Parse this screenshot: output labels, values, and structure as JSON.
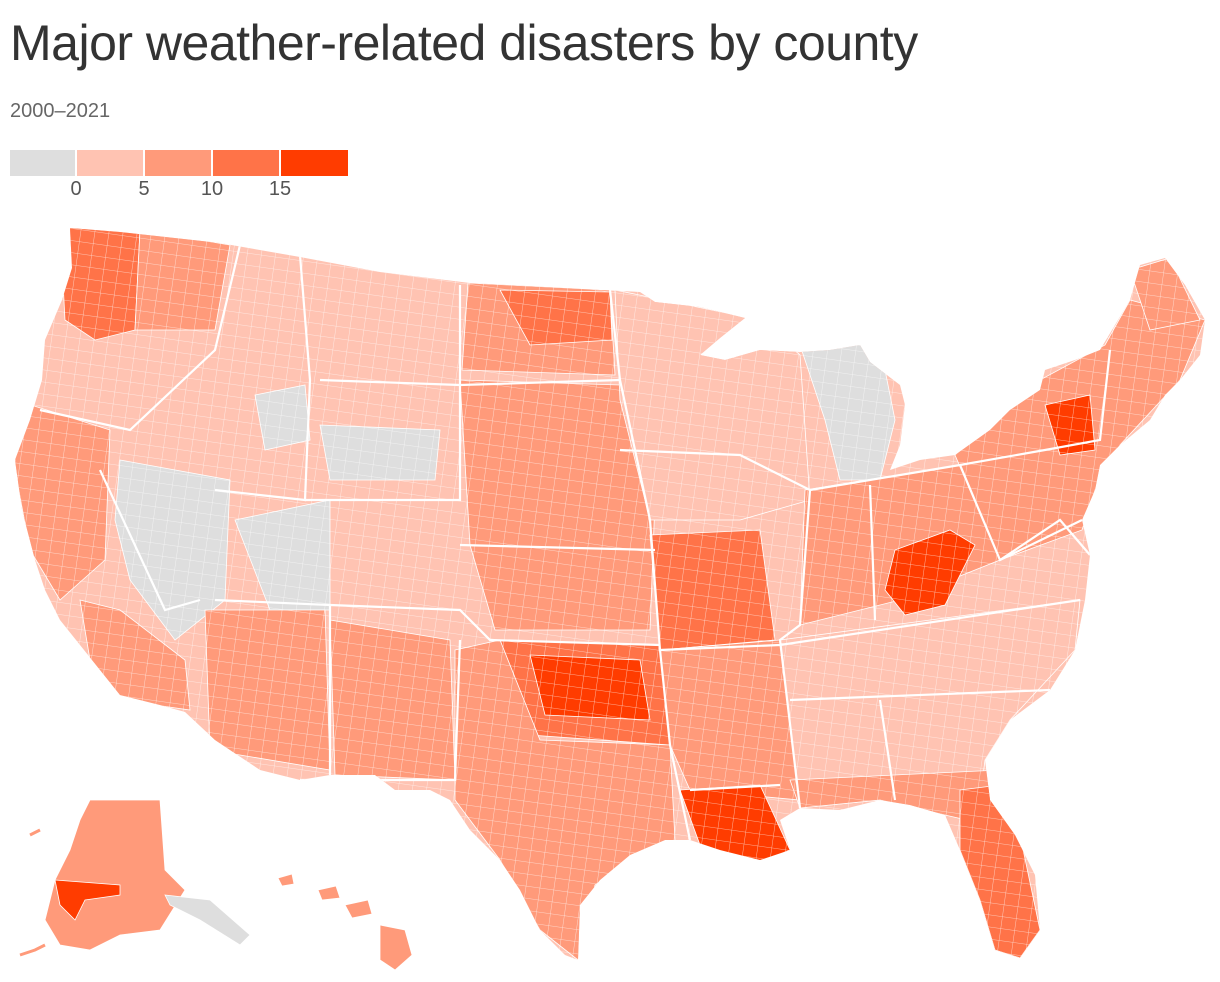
{
  "title": "Major weather-related disasters by county",
  "subtitle": "2000–2021",
  "legend": {
    "colors": [
      "#dedede",
      "#ffc3b2",
      "#ff9a7a",
      "#ff7348",
      "#ff3c00"
    ],
    "ticks": [
      "0",
      "5",
      "10",
      "15"
    ]
  },
  "map": {
    "land_color": "#ffc3b2",
    "border_color": "#ffffff",
    "regions": [
      {
        "name": "washington-coast",
        "level": 3
      },
      {
        "name": "pacific-northwest",
        "level": 2
      },
      {
        "name": "northern-california",
        "level": 2
      },
      {
        "name": "southern-california",
        "level": 2
      },
      {
        "name": "nevada-east",
        "level": 0
      },
      {
        "name": "utah-south",
        "level": 0
      },
      {
        "name": "idaho-southeast",
        "level": 0
      },
      {
        "name": "wyoming-west",
        "level": 0
      },
      {
        "name": "new-mexico",
        "level": 2
      },
      {
        "name": "dakotas",
        "level": 2
      },
      {
        "name": "north-dakota-east",
        "level": 3
      },
      {
        "name": "nebraska-kansas",
        "level": 2
      },
      {
        "name": "oklahoma-core",
        "level": 4
      },
      {
        "name": "oklahoma-ring",
        "level": 3
      },
      {
        "name": "missouri",
        "level": 3
      },
      {
        "name": "texas",
        "level": 2
      },
      {
        "name": "louisiana",
        "level": 4
      },
      {
        "name": "arkansas-mississippi",
        "level": 2
      },
      {
        "name": "michigan-north",
        "level": 0
      },
      {
        "name": "upper-midwest",
        "level": 1
      },
      {
        "name": "appalachia",
        "level": 4
      },
      {
        "name": "ohio-valley",
        "level": 2
      },
      {
        "name": "southeast",
        "level": 1
      },
      {
        "name": "florida",
        "level": 3
      },
      {
        "name": "new-york-east",
        "level": 4
      },
      {
        "name": "northeast",
        "level": 2
      },
      {
        "name": "maine-north",
        "level": 2
      },
      {
        "name": "alaska",
        "level": 2
      },
      {
        "name": "alaska-southwest",
        "level": 4
      },
      {
        "name": "alaska-panhandle",
        "level": 0
      },
      {
        "name": "hawaii",
        "level": 2
      }
    ]
  }
}
